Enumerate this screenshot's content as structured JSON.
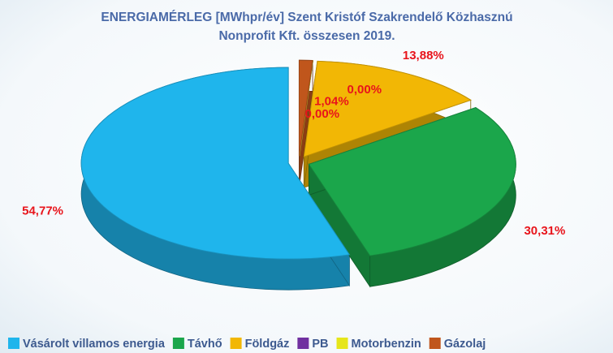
{
  "chart_data": {
    "type": "pie",
    "title": [
      "ENERGIAMÉRLEG [MWhpr/év] Szent Kristóf Szakrendelő Közhasznú",
      "Nonprofit Kft. összesen 2019."
    ],
    "categories": [
      "Vásárolt villamos energia",
      "Távhő",
      "Földgáz",
      "PB",
      "Motorbenzin",
      "Gázolaj"
    ],
    "values": [
      54.77,
      30.31,
      13.88,
      0.0,
      0.0,
      1.04
    ],
    "value_labels": [
      "54,77%",
      "30,31%",
      "13,88%",
      "0,00%",
      "0,00%",
      "1,04%"
    ],
    "colors": [
      "#1fb5ec",
      "#1ba64b",
      "#f2b705",
      "#7030a0",
      "#e6e61a",
      "#c0561c"
    ],
    "legend": "bottom"
  }
}
